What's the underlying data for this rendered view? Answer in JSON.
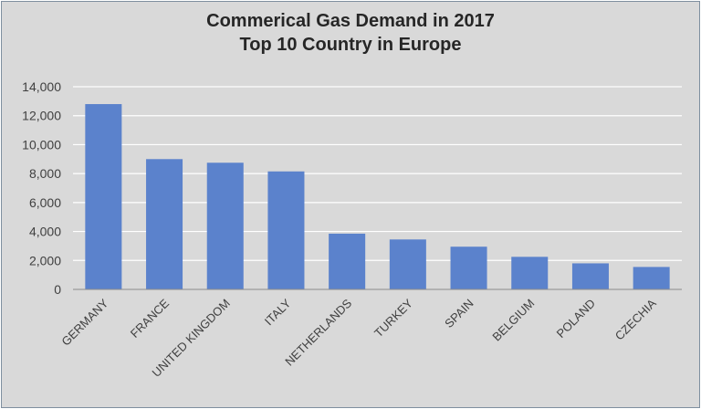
{
  "chart_data": {
    "type": "bar",
    "title": "Commerical Gas Demand in 2017",
    "subtitle": "Top 10 Country in Europe",
    "categories": [
      "GERMANY",
      "FRANCE",
      "UNITED KINGDOM",
      "ITALY",
      "NETHERLANDS",
      "TURKEY",
      "SPAIN",
      "BELGIUM",
      "POLAND",
      "CZECHIA"
    ],
    "values": [
      12800,
      9000,
      8750,
      8150,
      3850,
      3450,
      2950,
      2250,
      1800,
      1550
    ],
    "ylim": [
      0,
      14000
    ],
    "yticks": [
      0,
      2000,
      4000,
      6000,
      8000,
      10000,
      12000,
      14000
    ],
    "ytick_labels": [
      "0",
      "2,000",
      "4,000",
      "6,000",
      "8,000",
      "10,000",
      "12,000",
      "14,000"
    ],
    "grid": true,
    "legend": "none",
    "bar_color": "#5b82cc"
  }
}
